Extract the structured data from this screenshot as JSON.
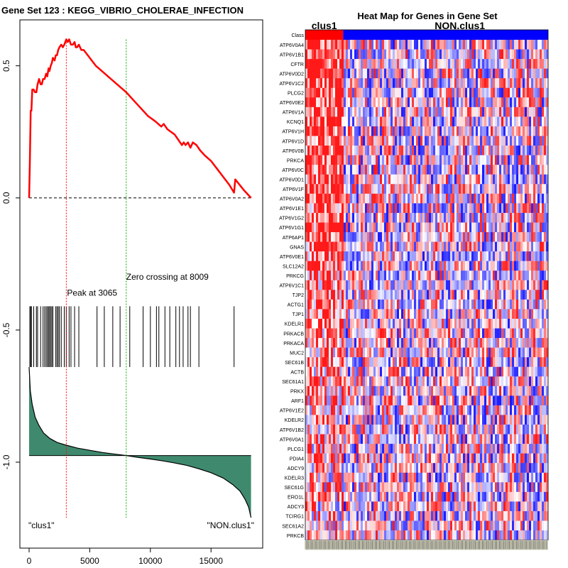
{
  "colors": {
    "es_line": "#ff0000",
    "peak_line": "#ff0000",
    "zero_line": "#00aa00",
    "ranked_fill": "#3f8a6e",
    "class_a": "#ff0000",
    "class_b": "#0000ff"
  },
  "chart_data": [
    {
      "type": "line",
      "title": "Gene Set  123 : KEGG_VIBRIO_CHOLERAE_INFECTION",
      "xlim": [
        0,
        18500
      ],
      "ylim": [
        -1.25,
        0.62
      ],
      "x_ticks": [
        0,
        5000,
        10000,
        15000
      ],
      "x_tick_labels": [
        "0",
        "5000",
        "10000",
        "15000"
      ],
      "y_ticks": [
        0.5,
        0.0,
        -0.5,
        -1.0
      ],
      "y_tick_labels": [
        "0.5",
        "0.0",
        "-0.5",
        "-1.0"
      ],
      "series": [
        {
          "name": "enrichment_score",
          "x": [
            0,
            60,
            130,
            190,
            260,
            380,
            480,
            600,
            700,
            820,
            950,
            1050,
            1150,
            1280,
            1400,
            1500,
            1600,
            1680,
            1780,
            1870,
            1960,
            2100,
            2200,
            2300,
            2400,
            2500,
            2650,
            2780,
            2900,
            3065,
            3180,
            3300,
            3450,
            3600,
            3750,
            3850,
            3950,
            4100,
            4300,
            4500,
            5000,
            5500,
            6000,
            6500,
            7000,
            7500,
            8009,
            8600,
            9200,
            9800,
            10400,
            10900,
            11100,
            11400,
            11700,
            12000,
            12300,
            12600,
            12750,
            12900,
            13100,
            13300,
            13500,
            13800,
            14100,
            14500,
            15000,
            15500,
            16000,
            16500,
            16900,
            17000,
            17700,
            18300
          ],
          "y": [
            0.0,
            0.13,
            0.33,
            0.33,
            0.41,
            0.41,
            0.4,
            0.4,
            0.43,
            0.45,
            0.43,
            0.43,
            0.45,
            0.45,
            0.47,
            0.46,
            0.49,
            0.48,
            0.5,
            0.51,
            0.53,
            0.52,
            0.54,
            0.54,
            0.56,
            0.57,
            0.58,
            0.57,
            0.58,
            0.6,
            0.59,
            0.6,
            0.58,
            0.58,
            0.59,
            0.57,
            0.57,
            0.58,
            0.56,
            0.56,
            0.53,
            0.5,
            0.48,
            0.46,
            0.44,
            0.42,
            0.4,
            0.37,
            0.34,
            0.31,
            0.29,
            0.27,
            0.28,
            0.26,
            0.25,
            0.24,
            0.22,
            0.2,
            0.21,
            0.2,
            0.21,
            0.19,
            0.21,
            0.2,
            0.18,
            0.16,
            0.14,
            0.11,
            0.08,
            0.05,
            0.02,
            0.07,
            0.03,
            0.0
          ]
        }
      ],
      "hit_positions": [
        60,
        130,
        190,
        380,
        600,
        700,
        950,
        1150,
        1280,
        1400,
        1500,
        1600,
        1680,
        1780,
        1870,
        1960,
        2200,
        2300,
        2400,
        2500,
        2650,
        2900,
        3065,
        3300,
        3450,
        3750,
        4100,
        5600,
        6200,
        6900,
        7500,
        8300,
        9400,
        10000,
        10500,
        10700,
        11200,
        11600,
        12100,
        12400,
        12700,
        13100,
        13300,
        14000,
        16900
      ],
      "hit_band": [
        -0.41,
        -0.64
      ],
      "ranked_list": {
        "x": [
          0,
          100,
          250,
          500,
          800,
          1200,
          1700,
          2300,
          3000,
          4000,
          5000,
          6000,
          7000,
          8009,
          9000,
          10000,
          11000,
          12000,
          13000,
          14000,
          15000,
          16000,
          16800,
          17400,
          17800,
          18100,
          18300
        ],
        "y": [
          -0.64,
          -0.73,
          -0.78,
          -0.83,
          -0.86,
          -0.89,
          -0.91,
          -0.925,
          -0.935,
          -0.947,
          -0.955,
          -0.963,
          -0.969,
          -0.975,
          -0.982,
          -0.988,
          -0.995,
          -1.003,
          -1.012,
          -1.025,
          -1.04,
          -1.06,
          -1.085,
          -1.11,
          -1.14,
          -1.17,
          -1.21
        ],
        "baseline": -0.975
      },
      "annotations": [
        {
          "label": "Peak at 3065",
          "x": 3065
        },
        {
          "label": "Zero crossing at 8009",
          "x": 8009
        },
        {
          "label": "\"clus1\""
        },
        {
          "label": "\"NON.clus1\""
        }
      ]
    },
    {
      "type": "heatmap",
      "title": "Heat Map for Genes in Gene Set",
      "class_labels": [
        "clus1",
        "NON.clus1"
      ],
      "class_row_label": "Class",
      "clus1_fraction": 0.156,
      "genes": [
        "ATP6V0A4",
        "ATP6V1B1",
        "CFTR",
        "ATP6V0D2",
        "ATP6V1C2",
        "PLCG2",
        "ATP6V0E2",
        "ATP6V1A",
        "KCNQ1",
        "ATP6V1H",
        "ATP6V1D",
        "ATP6V0B",
        "PRKCA",
        "ATP6V0C",
        "ATP6V0D1",
        "ATP6V1F",
        "ATP6V0A2",
        "ATP6V1E1",
        "ATP6V1G2",
        "ATP6V1G1",
        "ATP6AP1",
        "GNAS",
        "ATP6V0E1",
        "SLC12A2",
        "PRKCG",
        "ATP6V1C1",
        "TJP2",
        "ACTG1",
        "TJP1",
        "KDELR1",
        "PRKACB",
        "PRKACA",
        "MUC2",
        "SEC61B",
        "ACTB",
        "SEC61A1",
        "PRKX",
        "ARF1",
        "ATP6V1E2",
        "KDELR2",
        "ATP6V1B2",
        "ATP6V0A1",
        "PLCG1",
        "PDIA4",
        "ADCY9",
        "KDELR3",
        "SEC61G",
        "ERO1L",
        "ADCY3",
        "TCIRG1",
        "SEC61A2",
        "PRKCB"
      ]
    }
  ]
}
